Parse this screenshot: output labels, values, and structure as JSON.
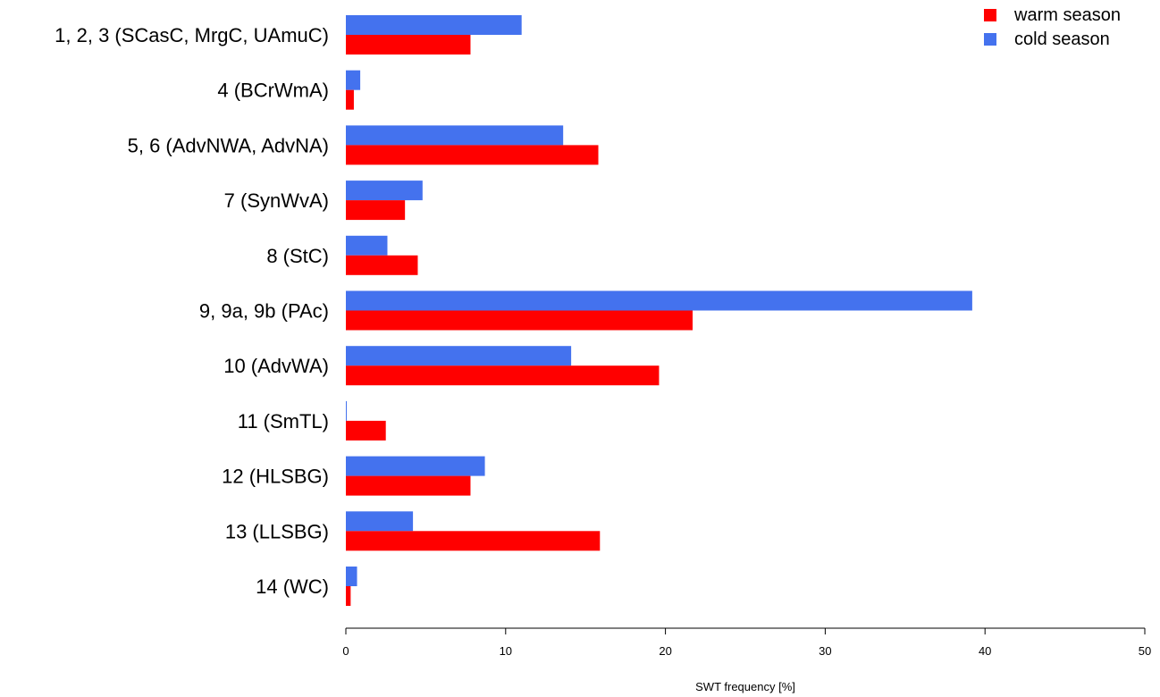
{
  "chart_data": {
    "type": "bar",
    "orientation": "horizontal",
    "categories": [
      "1, 2, 3 (SCasC, MrgC, UAmuC)",
      "4 (BCrWmA)",
      "5, 6 (AdvNWA, AdvNA)",
      "7 (SynWvA)",
      "8 (StC)",
      "9, 9a, 9b (PAc)",
      "10 (AdvWA)",
      "11 (SmTL)",
      "12 (HLSBG)",
      "13 (LLSBG)",
      "14 (WC)"
    ],
    "series": [
      {
        "name": "warm season",
        "color": "#ff0000",
        "values": [
          7.8,
          0.5,
          15.8,
          3.7,
          4.5,
          21.7,
          19.6,
          2.5,
          7.8,
          15.9,
          0.3
        ]
      },
      {
        "name": "cold season",
        "color": "#4472ee",
        "values": [
          11.0,
          0.9,
          13.6,
          4.8,
          2.6,
          39.2,
          14.1,
          0.05,
          8.7,
          4.2,
          0.7
        ]
      }
    ],
    "xlabel": "SWT frequency [%]",
    "ylabel": "",
    "xlim": [
      0,
      50
    ],
    "xticks": [
      0,
      10,
      20,
      30,
      40,
      50
    ],
    "grid": false,
    "legend_position": "top-right"
  }
}
